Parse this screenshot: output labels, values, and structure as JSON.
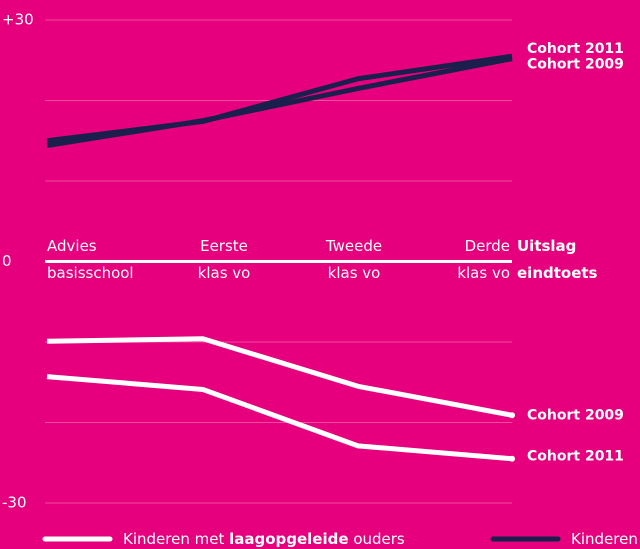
{
  "chart_data": {
    "type": "line",
    "categories": [
      [
        "Advies",
        "basisschool"
      ],
      [
        "Eerste",
        "klas vo"
      ],
      [
        "Tweede",
        "klas vo"
      ],
      [
        "Derde",
        "klas vo"
      ]
    ],
    "end_label": [
      "Uitslag",
      "eindtoets"
    ],
    "series": [
      {
        "name": "Cohort 2011",
        "color": "#1b1f4b",
        "values": [
          15.0,
          17.4,
          22.7,
          25.5
        ]
      },
      {
        "name": "Cohort 2009",
        "color": "#1b1f4b",
        "values": [
          14.4,
          17.5,
          21.5,
          25.2
        ]
      },
      {
        "name": "Cohort 2009",
        "color": "#ffffff",
        "values": [
          -9.9,
          -9.6,
          -15.5,
          -19.1
        ]
      },
      {
        "name": "Cohort 2011",
        "color": "#ffffff",
        "values": [
          -14.3,
          -15.9,
          -22.9,
          -24.5
        ]
      }
    ],
    "legend": [
      {
        "parts": [
          "Kinderen met ",
          "laagopgeleide",
          " ouders"
        ],
        "color": "#ffffff"
      },
      {
        "parts": [
          "Kinderen"
        ],
        "color": "#1b1f4b"
      }
    ],
    "ylim": [
      -30,
      30
    ],
    "yticks": [
      {
        "value": 30,
        "label": "+30"
      },
      0,
      {
        "value": -30,
        "label": "-30"
      }
    ],
    "ygrid": [
      30,
      20,
      10,
      -10,
      -20,
      -30
    ]
  }
}
